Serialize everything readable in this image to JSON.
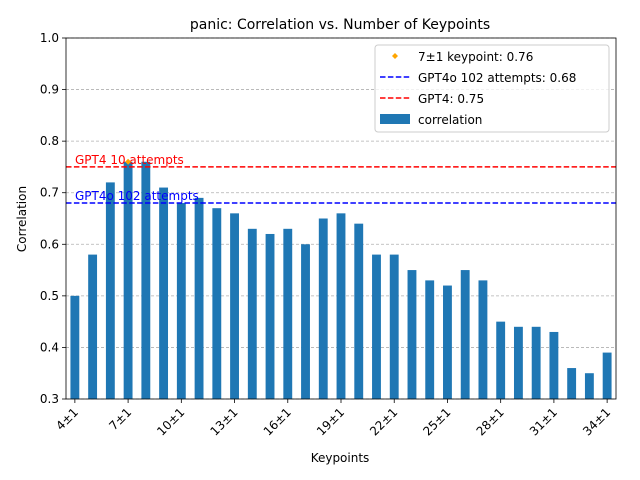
{
  "chart_data": {
    "type": "bar",
    "title": "panic: Correlation vs. Number of Keypoints",
    "xlabel": "Keypoints",
    "ylabel": "Correlation",
    "ylim": [
      0.3,
      1.0
    ],
    "yticks": [
      0.3,
      0.4,
      0.5,
      0.6,
      0.7,
      0.8,
      0.9,
      1.0
    ],
    "grid": "y-dashed",
    "legend_position": "top-right",
    "bar_color": "#1f77b4",
    "categories": [
      "4±1",
      "5±1",
      "6±1",
      "7±1",
      "8±1",
      "9±1",
      "10±1",
      "11±1",
      "12±1",
      "13±1",
      "14±1",
      "15±1",
      "16±1",
      "17±1",
      "18±1",
      "19±1",
      "20±1",
      "21±1",
      "22±1",
      "23±1",
      "24±1",
      "25±1",
      "26±1",
      "27±1",
      "28±1",
      "29±1",
      "30±1",
      "31±1",
      "32±1",
      "33±1",
      "34±1"
    ],
    "xtick_labels": [
      "4±1",
      "7±1",
      "10±1",
      "13±1",
      "16±1",
      "19±1",
      "22±1",
      "25±1",
      "28±1",
      "31±1",
      "34±1"
    ],
    "series": [
      {
        "name": "correlation",
        "values": [
          0.5,
          0.58,
          0.72,
          0.76,
          0.76,
          0.71,
          0.68,
          0.69,
          0.67,
          0.66,
          0.63,
          0.62,
          0.63,
          0.6,
          0.65,
          0.66,
          0.64,
          0.58,
          0.58,
          0.55,
          0.53,
          0.52,
          0.55,
          0.53,
          0.45,
          0.44,
          0.44,
          0.43,
          0.36,
          0.35,
          0.39
        ]
      }
    ],
    "highlight_point": {
      "label": "7±1 keypoint: 0.76",
      "category": "7±1",
      "value": 0.76,
      "color": "#ffa500"
    },
    "reference_lines": [
      {
        "label": "GPT4o 102 attempts: 0.68",
        "value": 0.68,
        "color": "#0000ff",
        "annotation": "GPT4o 102 attempts"
      },
      {
        "label": "GPT4: 0.75",
        "value": 0.75,
        "color": "#ff0000",
        "annotation": "GPT4 10 attempts"
      }
    ]
  }
}
